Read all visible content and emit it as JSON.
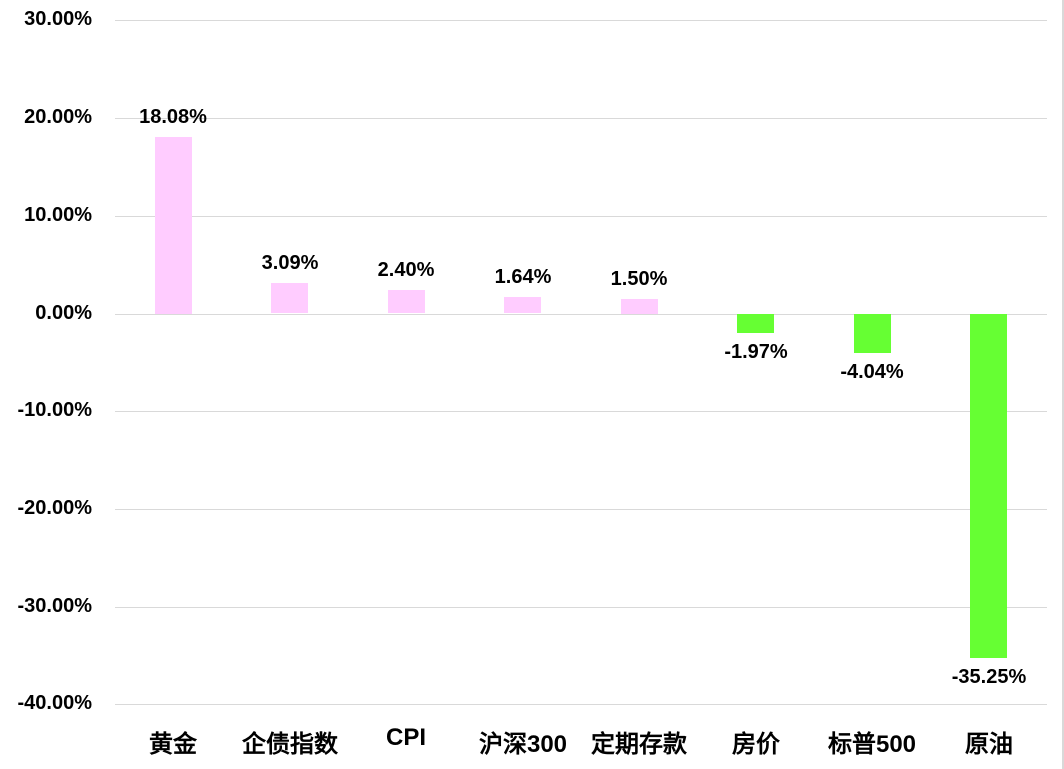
{
  "chart_data": {
    "type": "bar",
    "title": "",
    "xlabel": "",
    "ylabel": "",
    "categories": [
      "黄金",
      "企债指数",
      "CPI",
      "沪深300",
      "定期存款",
      "房价",
      "标普500",
      "原油"
    ],
    "values": [
      18.08,
      3.09,
      2.4,
      1.64,
      1.5,
      -1.97,
      -4.04,
      -35.25
    ],
    "data_labels": [
      "18.08%",
      "3.09%",
      "2.40%",
      "1.64%",
      "1.50%",
      "-1.97%",
      "-4.04%",
      "-35.25%"
    ],
    "ylim": [
      -40,
      30
    ],
    "yticks": [
      30,
      20,
      10,
      0,
      -10,
      -20,
      -30,
      -40
    ],
    "ytick_labels": [
      "30.00%",
      "20.00%",
      "10.00%",
      "0.00%",
      "-10.00%",
      "-20.00%",
      "-30.00%",
      "-40.00%"
    ],
    "grid": true,
    "legend": "none",
    "colors": {
      "positive": "#ffccff",
      "negative": "#66ff33",
      "grid": "#d9d9d9"
    }
  }
}
